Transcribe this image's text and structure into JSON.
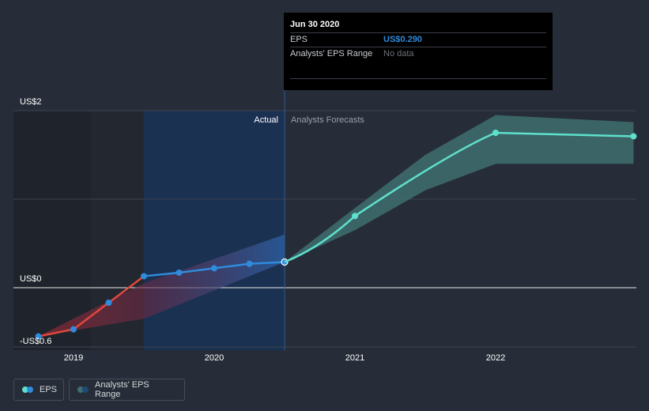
{
  "tooltip": {
    "title": "Jun 30 2020",
    "rows": [
      {
        "label": "EPS",
        "value": "US$0.290"
      },
      {
        "label": "Analysts' EPS Range",
        "value": "No data"
      }
    ]
  },
  "legend": {
    "eps_label": "EPS",
    "range_label": "Analysts' EPS Range"
  },
  "colors": {
    "background": "#262d38",
    "eps_actual": "#2f8bdc",
    "eps_negative": "#e0473f",
    "forecast": "#5fe0cc",
    "forecast_band": "#3f6f70",
    "actual_region": "#1b3152"
  },
  "chart_data": {
    "type": "line",
    "title": "",
    "xlabel": "",
    "ylabel": "",
    "ylim": [
      -0.6,
      2.0
    ],
    "xlim": [
      2018.6,
      2023.0
    ],
    "y_ticks": [
      {
        "value": 2.0,
        "label": "US$2"
      },
      {
        "value": 0.0,
        "label": "US$0"
      },
      {
        "value": -0.6,
        "label": "-US$0.6"
      }
    ],
    "x_ticks": [
      {
        "value": 2019,
        "label": "2019"
      },
      {
        "value": 2020,
        "label": "2020"
      },
      {
        "value": 2021,
        "label": "2021"
      },
      {
        "value": 2022,
        "label": "2022"
      }
    ],
    "region_labels": {
      "actual": "Actual",
      "forecast": "Analysts Forecasts"
    },
    "actual_until": 2020.5,
    "series": [
      {
        "name": "EPS",
        "points": [
          {
            "x": 2018.75,
            "y": -0.55
          },
          {
            "x": 2019.0,
            "y": -0.47
          },
          {
            "x": 2019.25,
            "y": -0.17
          },
          {
            "x": 2019.5,
            "y": 0.13
          },
          {
            "x": 2019.75,
            "y": 0.17
          },
          {
            "x": 2020.0,
            "y": 0.22
          },
          {
            "x": 2020.25,
            "y": 0.27
          },
          {
            "x": 2020.5,
            "y": 0.29
          }
        ]
      },
      {
        "name": "EPS forecast",
        "points": [
          {
            "x": 2020.5,
            "y": 0.29
          },
          {
            "x": 2021.0,
            "y": 0.81
          },
          {
            "x": 2022.0,
            "y": 1.75
          },
          {
            "x": 2023.0,
            "y": 1.71
          }
        ]
      }
    ],
    "forecast_range": {
      "x": [
        2020.5,
        2021.0,
        2021.5,
        2022.0,
        2023.0
      ],
      "low": [
        0.29,
        0.65,
        1.1,
        1.4,
        1.4
      ],
      "high": [
        0.29,
        0.9,
        1.5,
        1.95,
        1.87
      ]
    },
    "historical_range": {
      "x": [
        2018.75,
        2019.5,
        2020.5
      ],
      "low": [
        -0.55,
        -0.35,
        0.29
      ],
      "high": [
        -0.55,
        0.05,
        0.6
      ]
    }
  }
}
